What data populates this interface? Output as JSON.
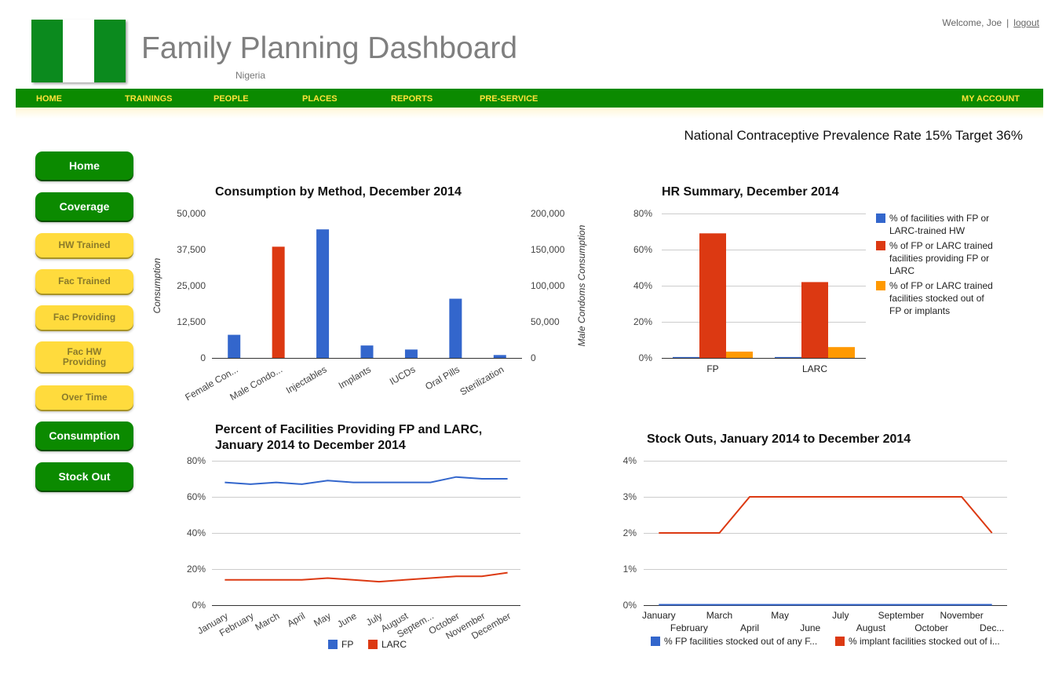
{
  "app": {
    "title": "Family Planning Dashboard",
    "subtitle": "Nigeria",
    "welcome": "Welcome, Joe",
    "separator": "|",
    "logout": "logout"
  },
  "colors": {
    "nav_green": "#0b8a00",
    "nav_text": "#ffe23a",
    "button_yellow": "#ffdb3d",
    "fp_blue": "#3366cc",
    "larc_red": "#dc3912",
    "stock_orange": "#ff9900"
  },
  "nav": {
    "home": "HOME",
    "trainings": "TRAININGS",
    "people": "PEOPLE",
    "places": "PLACES",
    "reports": "REPORTS",
    "preservice": "PRE-SERVICE",
    "account": "MY ACCOUNT"
  },
  "cpr": "National Contraceptive Prevalence Rate 15% Target 36%",
  "sidebar": {
    "home": "Home",
    "coverage": "Coverage",
    "hw_trained": "HW Trained",
    "fac_trained": "Fac Trained",
    "fac_providing": "Fac Providing",
    "fac_hw_providing_1": "Fac HW",
    "fac_hw_providing_2": "Providing",
    "over_time": "Over Time",
    "consumption": "Consumption",
    "stock_out": "Stock Out"
  },
  "titles": {
    "consumption": "Consumption by Method, December 2014",
    "hr": "HR Summary, December 2014",
    "providing_line1": "Percent of Facilities Providing FP and LARC,",
    "providing_line2": "January 2014 to December 2014",
    "stockouts": "Stock Outs, January 2014 to December 2014"
  },
  "chart_data": [
    {
      "id": "consumption",
      "type": "bar",
      "title": "Consumption by Method, December 2014",
      "categories": [
        "Female Con...",
        "Male Condo...",
        "Injectables",
        "Implants",
        "IUCDs",
        "Oral Pills",
        "Sterilization"
      ],
      "series": [
        {
          "name": "Consumption",
          "axis": "left",
          "color": "#3366cc",
          "values": [
            8000,
            null,
            44500,
            4300,
            2900,
            20500,
            1000
          ]
        },
        {
          "name": "Male Condoms Consumption",
          "axis": "right",
          "color": "#dc3912",
          "values": [
            null,
            154000,
            null,
            null,
            null,
            null,
            null
          ]
        }
      ],
      "ylabel": "Consumption",
      "ylabel_right": "Male Condoms Consumption",
      "ylim": [
        0,
        50000
      ],
      "yticks": [
        "0",
        "12,500",
        "25,000",
        "37,500",
        "50,000"
      ],
      "ylim_right": [
        0,
        200000
      ],
      "yticks_right": [
        "0",
        "50,000",
        "100,000",
        "150,000",
        "200,000"
      ],
      "grid": false
    },
    {
      "id": "hr",
      "type": "bar",
      "title": "HR Summary, December 2014",
      "categories": [
        "FP",
        "LARC"
      ],
      "series": [
        {
          "name": "% of facilities with FP or LARC-trained HW",
          "color": "#3366cc",
          "values": [
            0.5,
            0.5
          ],
          "legend_lines": [
            "% of facilities with FP or",
            "LARC-trained HW"
          ]
        },
        {
          "name": "% of FP or LARC trained facilities providing FP or LARC",
          "color": "#dc3912",
          "values": [
            69,
            42
          ],
          "legend_lines": [
            "% of FP or LARC trained",
            "facilities providing FP or",
            "LARC"
          ]
        },
        {
          "name": "% of FP or LARC trained facilities stocked out of FP or implants",
          "color": "#ff9900",
          "values": [
            3.5,
            6
          ],
          "legend_lines": [
            "% of FP or LARC trained",
            "facilities stocked out of",
            "FP or implants"
          ]
        }
      ],
      "ylim": [
        0,
        80
      ],
      "yticks": [
        "0%",
        "20%",
        "40%",
        "60%",
        "80%"
      ],
      "legend": "right",
      "grid": true
    },
    {
      "id": "providing",
      "type": "line",
      "title": "Percent of Facilities Providing FP and LARC, January 2014 to December 2014",
      "x": [
        "January",
        "February",
        "March",
        "April",
        "May",
        "June",
        "July",
        "August",
        "Septem...",
        "October",
        "November",
        "December"
      ],
      "series": [
        {
          "name": "FP",
          "color": "#3366cc",
          "values": [
            68,
            67,
            68,
            67,
            69,
            68,
            68,
            68,
            68,
            71,
            70,
            70
          ]
        },
        {
          "name": "LARC",
          "color": "#dc3912",
          "values": [
            14,
            14,
            14,
            14,
            15,
            14,
            13,
            14,
            15,
            16,
            16,
            18
          ]
        }
      ],
      "ylim": [
        0,
        80
      ],
      "yticks": [
        "0%",
        "20%",
        "40%",
        "60%",
        "80%"
      ],
      "legend": "bottom",
      "grid": true
    },
    {
      "id": "stockouts",
      "type": "line",
      "title": "Stock Outs, January 2014 to December 2014",
      "x": [
        "January",
        "February",
        "March",
        "April",
        "May",
        "June",
        "July",
        "August",
        "September",
        "October",
        "November",
        "Dec..."
      ],
      "series": [
        {
          "name": "% FP facilities stocked out of any F...",
          "color": "#3366cc",
          "values": [
            0,
            0,
            0,
            0,
            0,
            0,
            0,
            0,
            0,
            0,
            0,
            0
          ]
        },
        {
          "name": "% implant facilities stocked out of i...",
          "color": "#dc3912",
          "values": [
            2,
            2,
            2,
            3,
            3,
            3,
            3,
            3,
            3,
            3,
            3,
            2
          ]
        }
      ],
      "ylim": [
        0,
        4
      ],
      "yticks": [
        "0%",
        "1%",
        "2%",
        "3%",
        "4%"
      ],
      "legend": "bottom",
      "grid": true
    }
  ]
}
